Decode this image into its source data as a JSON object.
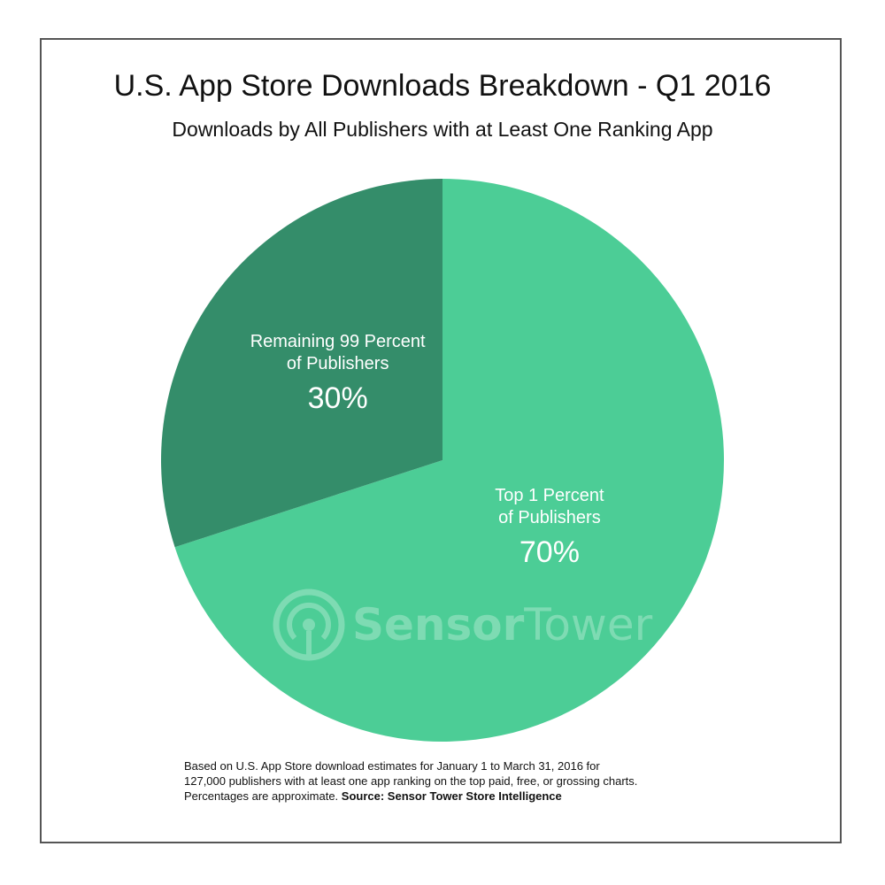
{
  "colors": {
    "top_slice": "#4ccd96",
    "remaining_slice": "#348d6a",
    "label_text": "#ffffff",
    "frame": "#555555",
    "watermark": "#ffffff"
  },
  "watermark": {
    "text_bold": "Sensor",
    "text_regular": "Tower",
    "icon": "broadcast-tower-icon"
  },
  "footnote": {
    "line1": "Based on U.S. App Store download estimates for January 1 to March 31, 2016 for",
    "line2": "127,000 publishers with at least one app ranking on the top paid, free, or grossing charts.",
    "line3_regular": "Percentages are approximate.",
    "line3_bold": "Source: Sensor Tower Store Intelligence"
  },
  "chart_data": {
    "type": "pie",
    "title": "U.S. App Store Downloads Breakdown - Q1 2016",
    "subtitle": "Downloads by All Publishers with at Least One Ranking App",
    "slices": [
      {
        "label_line1": "Top 1 Percent",
        "label_line2": "of Publishers",
        "value": 70,
        "display": "70%",
        "color": "#4ccd96"
      },
      {
        "label_line1": "Remaining 99 Percent",
        "label_line2": "of Publishers",
        "value": 30,
        "display": "30%",
        "color": "#348d6a"
      }
    ]
  }
}
